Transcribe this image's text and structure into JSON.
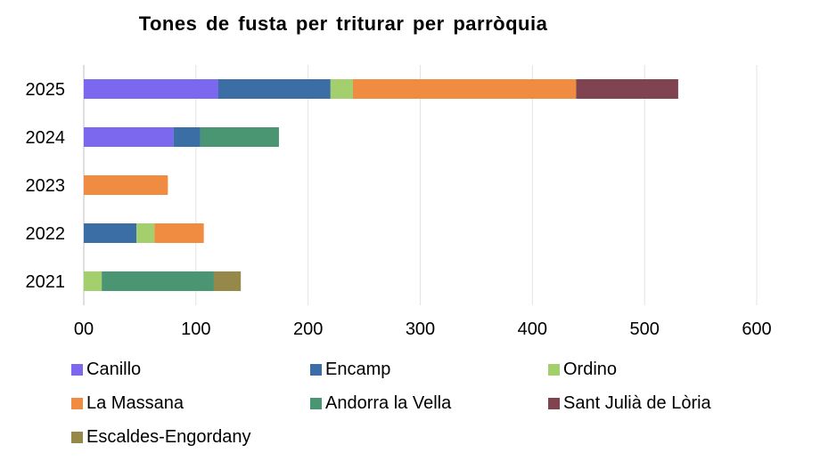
{
  "chart_data": {
    "type": "bar",
    "orientation": "horizontal",
    "stacked": true,
    "title": "Tones de fusta  per triturar  per parròquia",
    "xlabel": "",
    "ylabel": "",
    "xlim": [
      0,
      600
    ],
    "x_ticks": [
      "00",
      "100",
      "200",
      "300",
      "400",
      "500",
      "600"
    ],
    "grid": true,
    "legend_position": "bottom",
    "categories": [
      "2025",
      "2024",
      "2023",
      "2022",
      "2021"
    ],
    "series": [
      {
        "name": "Canillo",
        "color": "#7B68EE",
        "values": [
          120,
          80,
          0,
          0,
          0
        ]
      },
      {
        "name": "Encamp",
        "color": "#3A6EA5",
        "values": [
          100,
          24,
          0,
          47,
          0
        ]
      },
      {
        "name": "Ordino",
        "color": "#A3D06D",
        "values": [
          20,
          0,
          0,
          16,
          16
        ]
      },
      {
        "name": "La Massana",
        "color": "#F08C42",
        "values": [
          199,
          0,
          75,
          44,
          0
        ]
      },
      {
        "name": "Andorra la Vella",
        "color": "#4A9673",
        "values": [
          0,
          70,
          0,
          0,
          100
        ]
      },
      {
        "name": "Sant Julià de Lòria",
        "color": "#7F4450",
        "values": [
          91,
          0,
          0,
          0,
          0
        ]
      },
      {
        "name": "Escaldes-Engordany",
        "color": "#968848",
        "values": [
          0,
          0,
          0,
          0,
          24
        ]
      }
    ]
  }
}
